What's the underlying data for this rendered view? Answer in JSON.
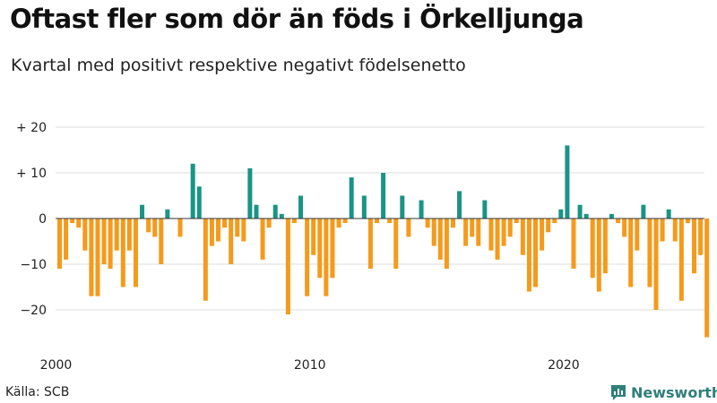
{
  "title": "Oftast fler som dör än föds i Örkelljunga",
  "subtitle": "Kvartal med positivt respektive negativt födelsenetto",
  "source": "Källa: SCB",
  "brand": "Newsworthy",
  "colors": {
    "positive": "#1a9485",
    "negative": "#f59a1b",
    "grid": "#dddddd",
    "baseline": "#333333",
    "brand": "#2f7f7a"
  },
  "chart_data": {
    "type": "bar",
    "title": "Oftast fler som dör än föds i Örkelljunga",
    "subtitle": "Kvartal med positivt respektive negativt födelsenetto",
    "xlabel": "",
    "ylabel": "",
    "ylim": [
      -27,
      20
    ],
    "yticks": [
      {
        "value": 20,
        "label": "+ 20"
      },
      {
        "value": 10,
        "label": "+ 10"
      },
      {
        "value": 0,
        "label": "0"
      },
      {
        "value": -10,
        "label": "−10"
      },
      {
        "value": -20,
        "label": "−20"
      }
    ],
    "xticks": [
      {
        "year": 2000,
        "label": "2000"
      },
      {
        "year": 2010,
        "label": "2010"
      },
      {
        "year": 2020,
        "label": "2020"
      }
    ],
    "start_year": 2000,
    "start_quarter": 1,
    "values": [
      -11,
      -9,
      -1,
      -2,
      -7,
      -17,
      -17,
      -10,
      -11,
      -7,
      -15,
      -7,
      -15,
      3,
      -3,
      -4,
      -10,
      2,
      0,
      -4,
      0,
      12,
      7,
      -18,
      -6,
      -5,
      -2,
      -10,
      -4,
      -5,
      11,
      3,
      -9,
      -2,
      3,
      1,
      -21,
      -1,
      5,
      -17,
      -8,
      -13,
      -17,
      -13,
      -2,
      -1,
      9,
      0,
      5,
      -11,
      -1,
      10,
      -1,
      -11,
      5,
      -4,
      0,
      4,
      -2,
      -6,
      -9,
      -11,
      -2,
      6,
      -6,
      -4,
      -6,
      4,
      -7,
      -9,
      -6,
      -4,
      -1,
      -8,
      -16,
      -15,
      -7,
      -3,
      -1,
      2,
      16,
      -11,
      3,
      1,
      -13,
      -16,
      -12,
      1,
      -1,
      -4,
      -15,
      -7,
      3,
      -15,
      -20,
      -5,
      2,
      -5,
      -18,
      -1,
      -12,
      -8,
      -26
    ],
    "grid": true
  }
}
